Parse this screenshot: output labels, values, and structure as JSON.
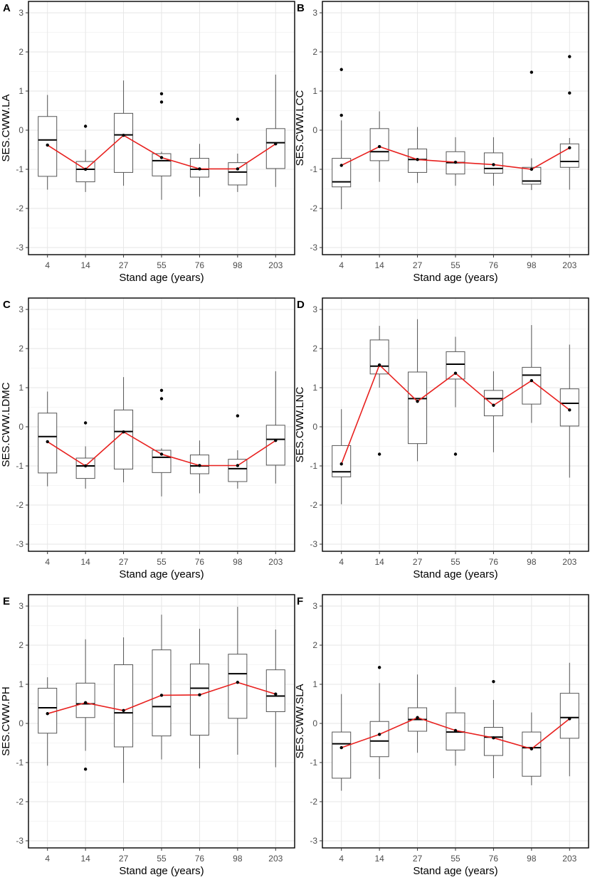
{
  "figure": {
    "x_label": "Stand age (years)",
    "ticks": [
      "-3",
      "-2",
      "-1",
      "0",
      "1",
      "2",
      "3"
    ],
    "colors": {
      "mean_line": "#e8201e",
      "box": "#555555",
      "grid": "#e6e6e6",
      "frame": "#000000"
    }
  },
  "chart_data": [
    {
      "panel": "A",
      "type": "boxplot",
      "ylabel": "SES.CWW.LA",
      "xlabel": "Stand age (years)",
      "categories": [
        "4",
        "14",
        "27",
        "55",
        "76",
        "98",
        "203"
      ],
      "ylim": [
        -3.1,
        3.1
      ],
      "boxes": [
        {
          "min": -1.52,
          "q1": -1.18,
          "median": -0.25,
          "q3": 0.35,
          "max": 0.9,
          "outliers": []
        },
        {
          "min": -1.58,
          "q1": -1.32,
          "median": -1.0,
          "q3": -0.8,
          "max": -0.5,
          "outliers": [
            0.1
          ]
        },
        {
          "min": -1.42,
          "q1": -1.08,
          "median": -0.12,
          "q3": 0.43,
          "max": 1.27,
          "outliers": []
        },
        {
          "min": -1.78,
          "q1": -1.17,
          "median": -0.78,
          "q3": -0.6,
          "max": -0.55,
          "outliers": [
            0.72,
            0.93
          ]
        },
        {
          "min": -1.7,
          "q1": -1.2,
          "median": -1.0,
          "q3": -0.72,
          "max": -0.35,
          "outliers": []
        },
        {
          "min": -1.58,
          "q1": -1.4,
          "median": -1.07,
          "q3": -0.83,
          "max": -0.6,
          "outliers": [
            0.28
          ]
        },
        {
          "min": -1.45,
          "q1": -0.98,
          "median": -0.32,
          "q3": 0.04,
          "max": 1.42,
          "outliers": []
        }
      ],
      "means": [
        -0.38,
        -1.0,
        -0.13,
        -0.7,
        -0.99,
        -0.99,
        -0.35
      ]
    },
    {
      "panel": "B",
      "type": "boxplot",
      "ylabel": "SES.CWW.LCC",
      "xlabel": "Stand age (years)",
      "categories": [
        "4",
        "14",
        "27",
        "55",
        "76",
        "98",
        "203"
      ],
      "ylim": [
        -3.1,
        3.1
      ],
      "boxes": [
        {
          "min": -2.02,
          "q1": -1.45,
          "median": -1.32,
          "q3": -0.72,
          "max": 0.25,
          "outliers": [
            0.38,
            1.55
          ]
        },
        {
          "min": -1.32,
          "q1": -0.78,
          "median": -0.55,
          "q3": 0.04,
          "max": 0.48,
          "outliers": []
        },
        {
          "min": -1.35,
          "q1": -1.08,
          "median": -0.75,
          "q3": -0.48,
          "max": 0.08,
          "outliers": []
        },
        {
          "min": -1.42,
          "q1": -1.12,
          "median": -0.83,
          "q3": -0.55,
          "max": -0.18,
          "outliers": []
        },
        {
          "min": -1.42,
          "q1": -1.1,
          "median": -0.98,
          "q3": -0.58,
          "max": -0.18,
          "outliers": []
        },
        {
          "min": -1.53,
          "q1": -1.38,
          "median": -1.3,
          "q3": -0.95,
          "max": -0.72,
          "outliers": [
            1.48
          ]
        },
        {
          "min": -1.52,
          "q1": -0.95,
          "median": -0.8,
          "q3": -0.35,
          "max": -0.2,
          "outliers": [
            0.95,
            1.88
          ]
        }
      ],
      "means": [
        -0.9,
        -0.42,
        -0.75,
        -0.82,
        -0.88,
        -1.0,
        -0.45
      ]
    },
    {
      "panel": "C",
      "type": "boxplot",
      "ylabel": "SES.CWW.LDMC",
      "xlabel": "Stand age (years)",
      "categories": [
        "4",
        "14",
        "27",
        "55",
        "76",
        "98",
        "203"
      ],
      "ylim": [
        -3.1,
        3.1
      ],
      "boxes": [
        {
          "min": -1.52,
          "q1": -1.18,
          "median": -0.25,
          "q3": 0.35,
          "max": 0.9,
          "outliers": []
        },
        {
          "min": -1.58,
          "q1": -1.32,
          "median": -1.0,
          "q3": -0.8,
          "max": -0.5,
          "outliers": [
            0.1
          ]
        },
        {
          "min": -1.42,
          "q1": -1.08,
          "median": -0.12,
          "q3": 0.43,
          "max": 1.27,
          "outliers": []
        },
        {
          "min": -1.78,
          "q1": -1.17,
          "median": -0.78,
          "q3": -0.6,
          "max": -0.55,
          "outliers": [
            0.72,
            0.93
          ]
        },
        {
          "min": -1.7,
          "q1": -1.2,
          "median": -1.0,
          "q3": -0.72,
          "max": -0.35,
          "outliers": []
        },
        {
          "min": -1.58,
          "q1": -1.4,
          "median": -1.07,
          "q3": -0.83,
          "max": -0.6,
          "outliers": [
            0.28
          ]
        },
        {
          "min": -1.45,
          "q1": -0.98,
          "median": -0.32,
          "q3": 0.04,
          "max": 1.42,
          "outliers": []
        }
      ],
      "means": [
        -0.38,
        -1.0,
        -0.13,
        -0.7,
        -0.99,
        -0.99,
        -0.35
      ]
    },
    {
      "panel": "D",
      "type": "boxplot",
      "ylabel": "SES.CWW.LNC",
      "xlabel": "Stand age (years)",
      "categories": [
        "4",
        "14",
        "27",
        "55",
        "76",
        "98",
        "203"
      ],
      "ylim": [
        -3.1,
        3.1
      ],
      "boxes": [
        {
          "min": -1.98,
          "q1": -1.28,
          "median": -1.15,
          "q3": -0.48,
          "max": 0.45,
          "outliers": []
        },
        {
          "min": 1.0,
          "q1": 1.35,
          "median": 1.55,
          "q3": 2.22,
          "max": 2.58,
          "outliers": [
            -0.7
          ]
        },
        {
          "min": -0.88,
          "q1": -0.43,
          "median": 0.72,
          "q3": 1.4,
          "max": 2.75,
          "outliers": []
        },
        {
          "min": 0.5,
          "q1": 1.22,
          "median": 1.6,
          "q3": 1.92,
          "max": 2.3,
          "outliers": [
            -0.7
          ]
        },
        {
          "min": -0.65,
          "q1": 0.28,
          "median": 0.72,
          "q3": 0.93,
          "max": 1.42,
          "outliers": []
        },
        {
          "min": 0.1,
          "q1": 0.58,
          "median": 1.32,
          "q3": 1.52,
          "max": 2.6,
          "outliers": []
        },
        {
          "min": -1.3,
          "q1": 0.02,
          "median": 0.6,
          "q3": 0.97,
          "max": 2.1,
          "outliers": []
        }
      ],
      "means": [
        -0.95,
        1.58,
        0.65,
        1.37,
        0.55,
        1.18,
        0.43
      ]
    },
    {
      "panel": "E",
      "type": "boxplot",
      "ylabel": "SES.CWW.PH",
      "xlabel": "Stand age (years)",
      "categories": [
        "4",
        "14",
        "27",
        "55",
        "76",
        "98",
        "203"
      ],
      "ylim": [
        -3.1,
        3.1
      ],
      "boxes": [
        {
          "min": -1.08,
          "q1": -0.25,
          "median": 0.4,
          "q3": 0.9,
          "max": 1.18,
          "outliers": []
        },
        {
          "min": -0.7,
          "q1": 0.15,
          "median": 0.5,
          "q3": 1.03,
          "max": 2.15,
          "outliers": [
            -1.17
          ]
        },
        {
          "min": -1.52,
          "q1": -0.6,
          "median": 0.27,
          "q3": 1.5,
          "max": 2.2,
          "outliers": []
        },
        {
          "min": -0.92,
          "q1": -0.32,
          "median": 0.43,
          "q3": 1.88,
          "max": 2.78,
          "outliers": []
        },
        {
          "min": -1.15,
          "q1": -0.3,
          "median": 0.9,
          "q3": 1.52,
          "max": 2.42,
          "outliers": []
        },
        {
          "min": -0.8,
          "q1": 0.13,
          "median": 1.27,
          "q3": 1.77,
          "max": 2.98,
          "outliers": []
        },
        {
          "min": -1.12,
          "q1": 0.3,
          "median": 0.7,
          "q3": 1.37,
          "max": 2.4,
          "outliers": []
        }
      ],
      "means": [
        0.25,
        0.53,
        0.33,
        0.72,
        0.73,
        1.05,
        0.75
      ]
    },
    {
      "panel": "F",
      "type": "boxplot",
      "ylabel": "SES.CWW.SLA",
      "xlabel": "Stand age (years)",
      "categories": [
        "4",
        "14",
        "27",
        "55",
        "76",
        "98",
        "203"
      ],
      "ylim": [
        -3.1,
        3.1
      ],
      "boxes": [
        {
          "min": -1.72,
          "q1": -1.4,
          "median": -0.52,
          "q3": -0.22,
          "max": 0.75,
          "outliers": []
        },
        {
          "min": -1.42,
          "q1": -0.85,
          "median": -0.45,
          "q3": 0.05,
          "max": 1.03,
          "outliers": [
            1.43
          ]
        },
        {
          "min": -0.75,
          "q1": -0.2,
          "median": 0.1,
          "q3": 0.4,
          "max": 1.25,
          "outliers": []
        },
        {
          "min": -1.08,
          "q1": -0.68,
          "median": -0.22,
          "q3": 0.27,
          "max": 0.93,
          "outliers": []
        },
        {
          "min": -1.4,
          "q1": -0.82,
          "median": -0.35,
          "q3": -0.1,
          "max": 0.6,
          "outliers": [
            1.07
          ]
        },
        {
          "min": -1.58,
          "q1": -1.35,
          "median": -0.62,
          "q3": -0.22,
          "max": 0.28,
          "outliers": []
        },
        {
          "min": -1.35,
          "q1": -0.38,
          "median": 0.15,
          "q3": 0.77,
          "max": 1.55,
          "outliers": []
        }
      ],
      "means": [
        -0.62,
        -0.28,
        0.15,
        -0.18,
        -0.37,
        -0.65,
        0.12
      ]
    }
  ]
}
